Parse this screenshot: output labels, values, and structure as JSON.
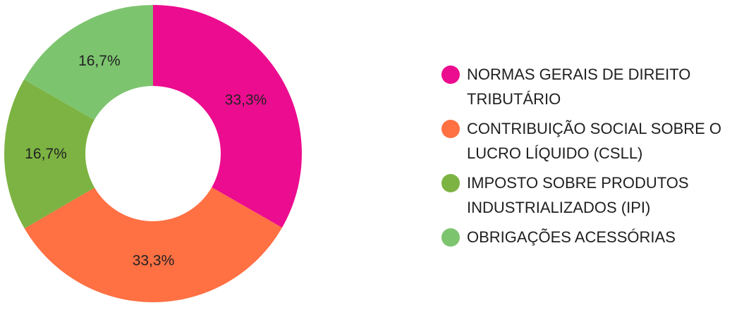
{
  "chart_data": {
    "type": "pie",
    "donut": true,
    "series": [
      {
        "name": "NORMAS GERAIS DE DIREITO TRIBUTÁRIO",
        "value": 33.3,
        "label": "33,3%",
        "color": "#ec0c8f"
      },
      {
        "name": "CONTRIBUIÇÃO SOCIAL SOBRE O LUCRO LÍQUIDO (CSLL)",
        "value": 33.3,
        "label": "33,3%",
        "color": "#ff7043"
      },
      {
        "name": "IMPOSTO SOBRE PRODUTOS INDUSTRIALIZADOS (IPI)",
        "value": 16.7,
        "label": "16,7%",
        "color": "#7cb342"
      },
      {
        "name": "OBRIGAÇÕES ACESSÓRIAS",
        "value": 16.7,
        "label": "16,7%",
        "color": "#7dc46f"
      }
    ],
    "legend_position": "right"
  },
  "legend": {
    "items": [
      {
        "label": "NORMAS GERAIS DE DIREITO TRIBUTÁRIO"
      },
      {
        "label": "CONTRIBUIÇÃO SOCIAL SOBRE O LUCRO LÍQUIDO (CSLL)"
      },
      {
        "label": "IMPOSTO SOBRE PRODUTOS INDUSTRIALIZADOS (IPI)"
      },
      {
        "label": "OBRIGAÇÕES ACESSÓRIAS"
      }
    ]
  }
}
